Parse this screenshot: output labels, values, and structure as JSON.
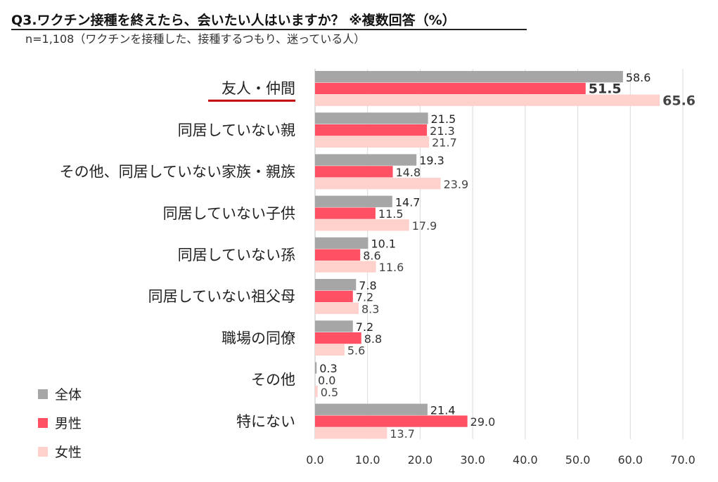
{
  "header": {
    "title": "Q3.ワクチン接種を終えたら、会いたい人はいますか？ ※複数回答（%）",
    "subtitle": "n=1,108（ワクチンを接種した、接種するつもり、迷っている人）"
  },
  "legend": {
    "items": [
      {
        "label": "全体",
        "color": "#a6a6a6"
      },
      {
        "label": "男性",
        "color": "#ff5163"
      },
      {
        "label": "女性",
        "color": "#ffd1cc"
      }
    ]
  },
  "chart_data": {
    "type": "bar",
    "orientation": "horizontal",
    "categories": [
      "友人・仲間",
      "同居していない親",
      "その他、同居していない家族・親族",
      "同居していない子供",
      "同居していない孫",
      "同居していない祖父母",
      "職場の同僚",
      "その他",
      "特にない"
    ],
    "series": [
      {
        "name": "全体",
        "color": "#a6a6a6",
        "values": [
          58.6,
          21.5,
          19.3,
          14.7,
          10.1,
          7.8,
          7.2,
          0.3,
          21.4
        ]
      },
      {
        "name": "男性",
        "color": "#ff5163",
        "values": [
          51.5,
          21.3,
          14.8,
          11.5,
          8.6,
          7.2,
          8.8,
          0.0,
          29.0
        ]
      },
      {
        "name": "女性",
        "color": "#ffd1cc",
        "values": [
          65.6,
          21.7,
          23.9,
          17.9,
          11.6,
          8.3,
          5.6,
          0.5,
          13.7
        ]
      }
    ],
    "xlim": [
      0,
      70
    ],
    "xticks": [
      "0.0",
      "10.0",
      "20.0",
      "30.0",
      "40.0",
      "50.0",
      "60.0",
      "70.0"
    ],
    "grid": true,
    "legend_position": "bottom-left",
    "highlight_category": "友人・仲間"
  }
}
